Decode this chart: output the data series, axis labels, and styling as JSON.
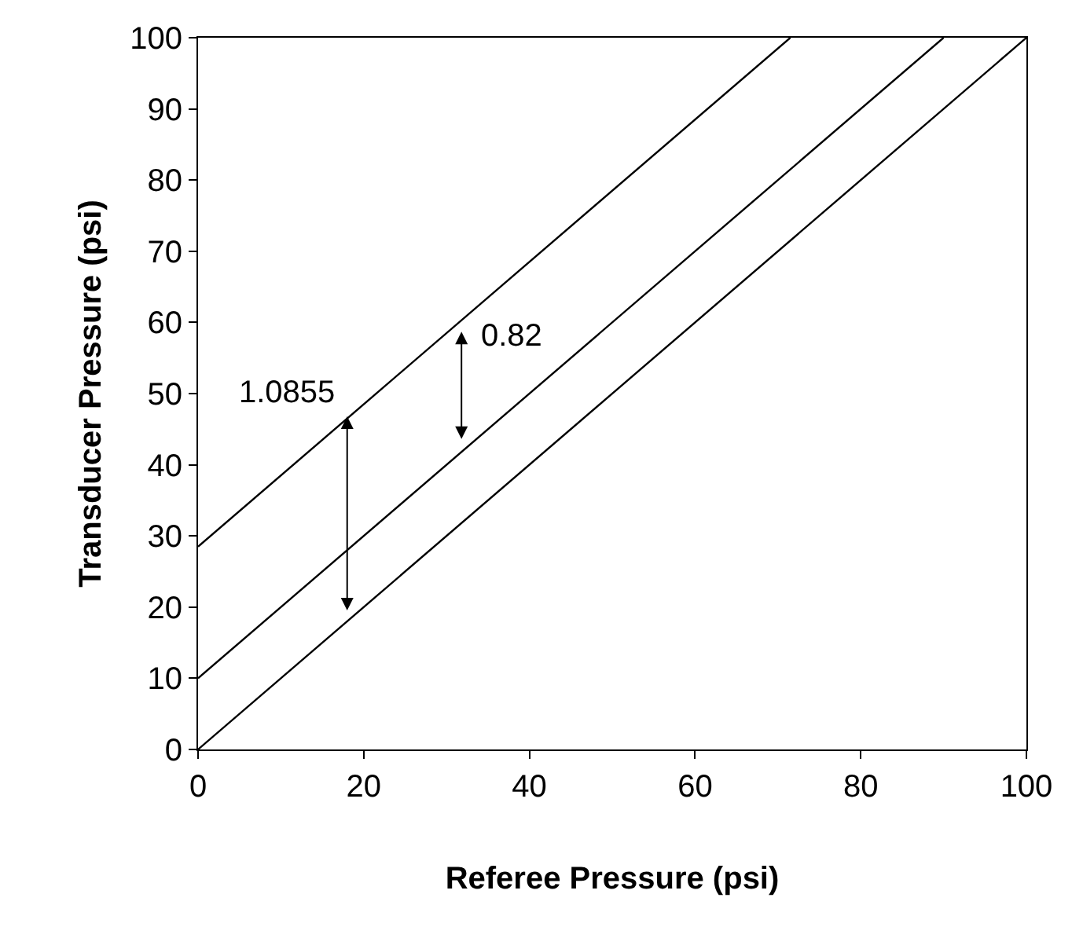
{
  "chart_data": {
    "type": "line",
    "xlabel": "Referee Pressure (psi)",
    "ylabel": "Transducer Pressure (psi)",
    "series": [
      {
        "color": "#000000",
        "x": [
          0,
          71.5
        ],
        "values": [
          28.5,
          100
        ]
      },
      {
        "color": "#000000",
        "x": [
          0,
          90
        ],
        "values": [
          10,
          100
        ]
      },
      {
        "color": "#000000",
        "x": [
          0,
          100
        ],
        "values": [
          0,
          100
        ]
      }
    ],
    "annotations": [
      "1.0855",
      "0.82"
    ],
    "xlim": [
      0,
      100
    ],
    "xticks": [
      0,
      20,
      40,
      60,
      80,
      100
    ],
    "ylim": [
      0,
      100
    ],
    "yticks": [
      0,
      10,
      20,
      30,
      40,
      50,
      60,
      70,
      80,
      90,
      100
    ],
    "marker": "none",
    "line_style": "solid"
  }
}
